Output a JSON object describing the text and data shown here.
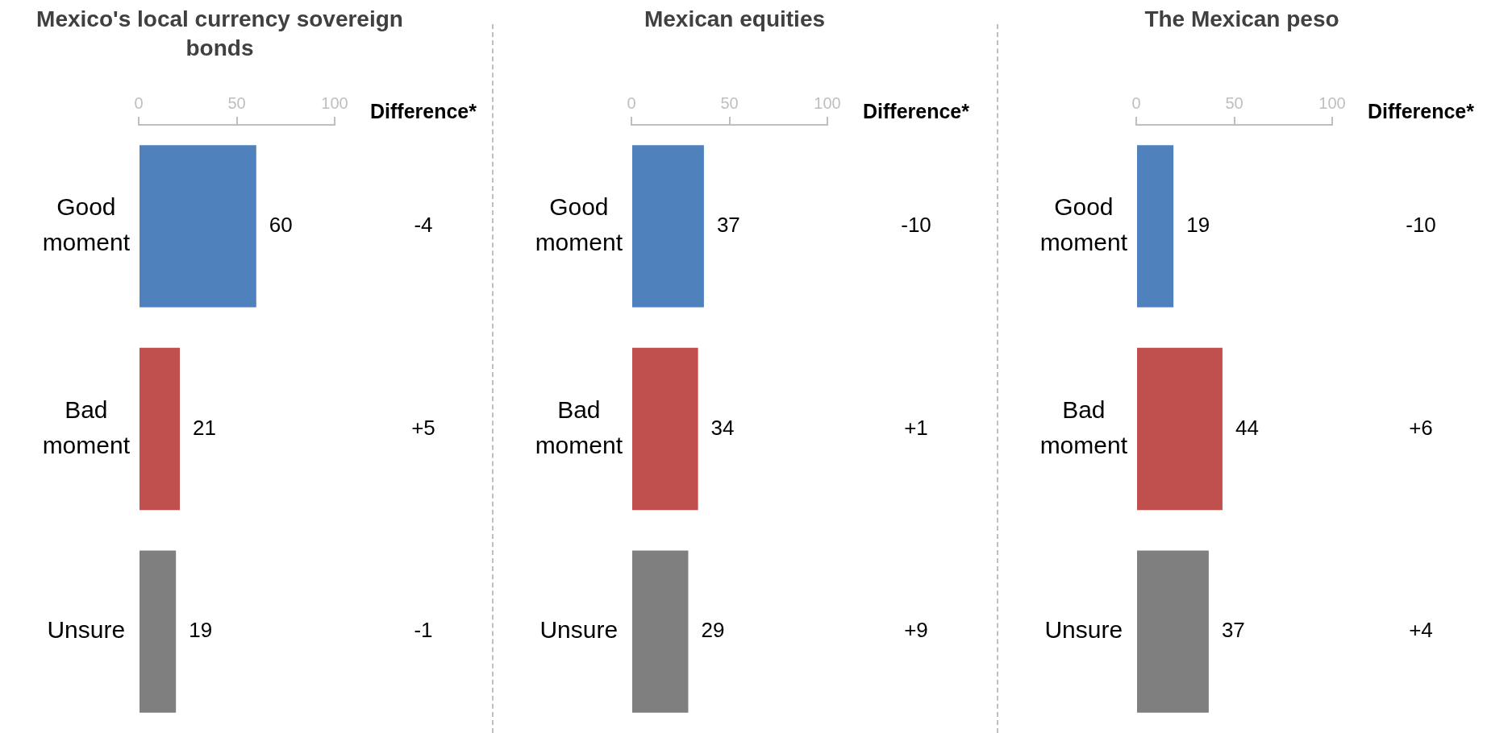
{
  "chart_data": [
    {
      "type": "bar",
      "orientation": "horizontal",
      "title": "Mexico's local currency sovereign bonds",
      "categories": [
        "Good moment",
        "Bad moment",
        "Unsure"
      ],
      "values": [
        60,
        21,
        19
      ],
      "colors": [
        "#4f81bd",
        "#c0504d",
        "#7f7f7f"
      ],
      "xlim": [
        0,
        100
      ],
      "xticks": [
        0,
        50,
        100
      ],
      "grid": false,
      "data_labels": true,
      "annotations": [
        "Difference*",
        "-4",
        "+5",
        "-1"
      ]
    },
    {
      "type": "bar",
      "orientation": "horizontal",
      "title": "Mexican equities",
      "categories": [
        "Good moment",
        "Bad moment",
        "Unsure"
      ],
      "values": [
        37,
        34,
        29
      ],
      "colors": [
        "#4f81bd",
        "#c0504d",
        "#7f7f7f"
      ],
      "xlim": [
        0,
        100
      ],
      "xticks": [
        0,
        50,
        100
      ],
      "grid": false,
      "data_labels": true,
      "annotations": [
        "Difference*",
        "-10",
        "+1",
        "+9"
      ]
    },
    {
      "type": "bar",
      "orientation": "horizontal",
      "title": "The Mexican peso",
      "categories": [
        "Good moment",
        "Bad moment",
        "Unsure"
      ],
      "values": [
        19,
        44,
        37
      ],
      "colors": [
        "#4f81bd",
        "#c0504d",
        "#7f7f7f"
      ],
      "xlim": [
        0,
        100
      ],
      "xticks": [
        0,
        50,
        100
      ],
      "grid": false,
      "data_labels": true,
      "annotations": [
        "Difference*",
        "-10",
        "+6",
        "+4"
      ]
    }
  ]
}
